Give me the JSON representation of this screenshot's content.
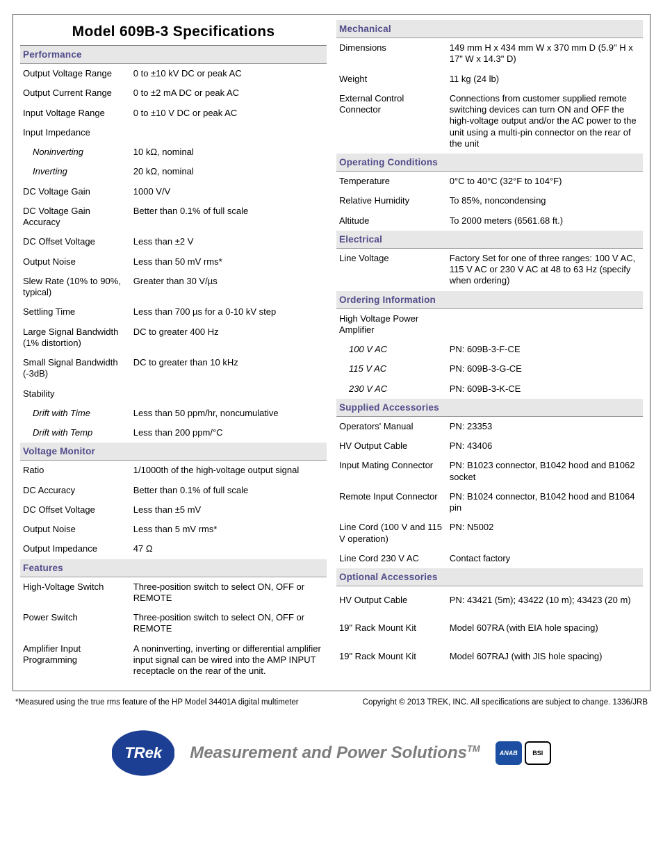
{
  "title": "Model 609B-3 Specifications",
  "left": {
    "sections": [
      {
        "head": "Performance",
        "rows": [
          {
            "l": "Output Voltage Range",
            "v": "0 to ±10 kV DC or peak AC"
          },
          {
            "l": "Output Current Range",
            "v": "0 to ±2 mA DC or peak AC"
          },
          {
            "l": "Input Voltage Range",
            "v": "0 to ±10 V DC or peak AC"
          },
          {
            "l": "Input Impedance",
            "v": ""
          },
          {
            "l": "Noninverting",
            "v": "10 kΩ, nominal",
            "indent": true
          },
          {
            "l": "Inverting",
            "v": "20 kΩ, nominal",
            "indent": true
          },
          {
            "l": "DC Voltage Gain",
            "v": "1000 V/V"
          },
          {
            "l": "DC Voltage Gain Accuracy",
            "v": "Better than 0.1% of full scale"
          },
          {
            "l": "DC Offset Voltage",
            "v": "Less than ±2 V"
          },
          {
            "l": "Output Noise",
            "v": "Less than 50 mV rms*"
          },
          {
            "l": "Slew Rate (10% to 90%, typical)",
            "v": "Greater than 30 V/µs"
          },
          {
            "l": "Settling Time",
            "v": "Less than 700 µs for a 0-10 kV step"
          },
          {
            "l": "Large Signal Bandwidth (1% distortion)",
            "v": "DC to greater 400 Hz"
          },
          {
            "l": "Small Signal Bandwidth (-3dB)",
            "v": "DC to greater than 10 kHz"
          },
          {
            "l": "Stability",
            "v": ""
          },
          {
            "l": "Drift with Time",
            "v": "Less than 50 ppm/hr, noncumulative",
            "indent": true
          },
          {
            "l": "Drift with Temp",
            "v": "Less than 200 ppm/°C",
            "indent": true
          }
        ]
      },
      {
        "head": "Voltage Monitor",
        "rows": [
          {
            "l": "Ratio",
            "v": "1/1000th of the high-voltage output signal"
          },
          {
            "l": "DC Accuracy",
            "v": "Better than 0.1% of full scale"
          },
          {
            "l": "DC Offset Voltage",
            "v": "Less than ±5 mV"
          },
          {
            "l": "Output Noise",
            "v": "Less than 5 mV rms*"
          },
          {
            "l": "Output Impedance",
            "v": "47 Ω"
          }
        ]
      },
      {
        "head": "Features",
        "rows": [
          {
            "l": "High-Voltage Switch",
            "v": "Three-position switch to select ON, OFF or REMOTE"
          },
          {
            "l": "Power Switch",
            "v": "Three-position switch to select ON, OFF or REMOTE"
          },
          {
            "l": "Amplifier Input Programming",
            "v": "A noninverting, inverting or differential amplifier input signal can be wired into the AMP INPUT receptacle on the rear of the unit."
          }
        ]
      }
    ]
  },
  "right": {
    "sections": [
      {
        "head": "Mechanical",
        "rows": [
          {
            "l": "Dimensions",
            "v": "149 mm H x 434 mm W x 370 mm D (5.9\" H x 17\" W x 14.3\" D)"
          },
          {
            "l": "Weight",
            "v": "11 kg (24 lb)"
          },
          {
            "l": "External Control Connector",
            "v": "Connections from customer supplied remote switching devices can turn ON and OFF the high-voltage output and/or the AC power to the unit using a multi-pin connector on the rear of the unit"
          }
        ]
      },
      {
        "head": "Operating Conditions",
        "rows": [
          {
            "l": "Temperature",
            "v": "0°C to 40°C (32°F to 104°F)"
          },
          {
            "l": "Relative Humidity",
            "v": "To 85%, noncondensing"
          },
          {
            "l": "Altitude",
            "v": "To 2000 meters (6561.68 ft.)"
          }
        ]
      },
      {
        "head": "Electrical",
        "rows": [
          {
            "l": "Line Voltage",
            "v": "Factory Set for one of three ranges: 100 V AC, 115 V AC or 230 V AC at 48 to 63 Hz (specify when ordering)"
          }
        ]
      },
      {
        "head": "Ordering Information",
        "rows": [
          {
            "l": "High Voltage Power Amplifier",
            "v": ""
          },
          {
            "l": "100 V AC",
            "v": "PN: 609B-3-F-CE",
            "indent": true
          },
          {
            "l": "115 V AC",
            "v": "PN: 609B-3-G-CE",
            "indent": true
          },
          {
            "l": "230 V AC",
            "v": "PN: 609B-3-K-CE",
            "indent": true
          }
        ]
      },
      {
        "head": "Supplied Accessories",
        "rows": [
          {
            "l": "Operators' Manual",
            "v": "PN: 23353"
          },
          {
            "l": "HV Output Cable",
            "v": "PN: 43406"
          },
          {
            "l": "Input Mating Connector",
            "v": "PN: B1023 connector, B1042 hood and B1062 socket"
          },
          {
            "l": "Remote Input Connector",
            "v": "PN: B1024 connector, B1042 hood and B1064 pin"
          },
          {
            "l": "Line Cord (100 V and 115 V operation)",
            "v": "PN: N5002"
          },
          {
            "l": "Line Cord 230 V AC",
            "v": "Contact factory"
          }
        ]
      },
      {
        "head": "Optional Accessories",
        "rows": [
          {
            "l": "HV Output Cable",
            "v": "PN: 43421 (5m); 43422 (10 m); 43423 (20 m)",
            "pad": true
          },
          {
            "l": "19\" Rack Mount Kit",
            "v": "Model  607RA (with EIA hole spacing)",
            "pad": true
          },
          {
            "l": "19\" Rack Mount Kit",
            "v": "Model 607RAJ (with JIS hole spacing)",
            "pad": true
          }
        ]
      }
    ]
  },
  "footnote_left": "*Measured using the true rms feature of the HP Model 34401A digital multimeter",
  "footnote_right": "Copyright © 2013 TREK, INC. All specifications are subject to change. 1336/JRB",
  "tagline": "Measurement and Power Solutions",
  "logo_text": "TRek",
  "badge_anab": "ANAB",
  "badge_bsi": "BSI"
}
